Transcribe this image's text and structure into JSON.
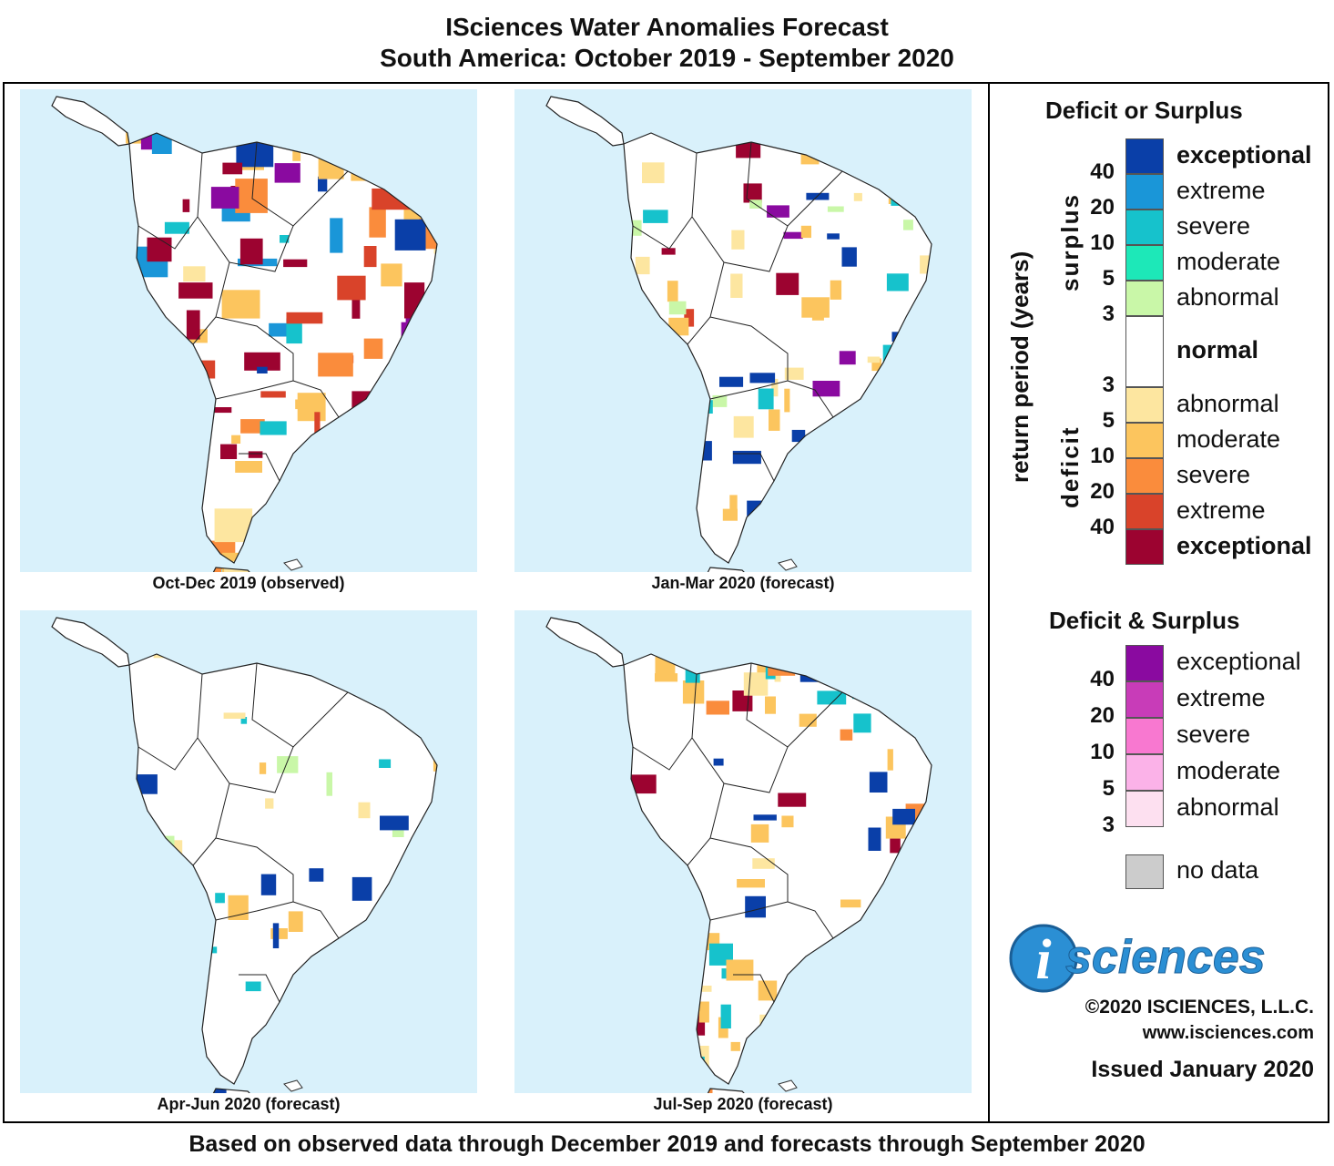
{
  "header": {
    "title": "ISciences Water Anomalies Forecast",
    "subtitle": "South America: October 2019 - September 2020"
  },
  "panels": [
    {
      "caption": "Oct-Dec 2019 (observed)",
      "intensity": "high"
    },
    {
      "caption": "Jan-Mar 2020 (forecast)",
      "intensity": "medium"
    },
    {
      "caption": "Apr-Jun 2020 (forecast)",
      "intensity": "low"
    },
    {
      "caption": "Jul-Sep 2020 (forecast)",
      "intensity": "medium-low"
    }
  ],
  "legend": {
    "ds_title": "Deficit or Surplus",
    "axis_label": "return period (years)",
    "surplus_label": "surplus",
    "deficit_label": "deficit",
    "surplus": [
      {
        "label": "exceptional",
        "color": "#0a3fa8"
      },
      {
        "label": "extreme",
        "color": "#1a96d8"
      },
      {
        "label": "severe",
        "color": "#16c2cc"
      },
      {
        "label": "moderate",
        "color": "#1de8b8"
      },
      {
        "label": "abnormal",
        "color": "#c9f7a8"
      }
    ],
    "normal": {
      "label": "normal",
      "color": "#ffffff"
    },
    "deficit": [
      {
        "label": "abnormal",
        "color": "#fde6a0"
      },
      {
        "label": "moderate",
        "color": "#fcc55e"
      },
      {
        "label": "severe",
        "color": "#fa8c3c"
      },
      {
        "label": "extreme",
        "color": "#d9432a"
      },
      {
        "label": "exceptional",
        "color": "#9c0330"
      }
    ],
    "surplus_nums": [
      "40",
      "20",
      "10",
      "5",
      "3"
    ],
    "deficit_nums": [
      "3",
      "5",
      "10",
      "20",
      "40"
    ],
    "both_title": "Deficit & Surplus",
    "both": [
      {
        "label": "exceptional",
        "color": "#8a0aa0"
      },
      {
        "label": "extreme",
        "color": "#c83cb8"
      },
      {
        "label": "severe",
        "color": "#f878d0"
      },
      {
        "label": "moderate",
        "color": "#fbb2e8"
      },
      {
        "label": "abnormal",
        "color": "#fde0f0"
      }
    ],
    "both_nums": [
      "40",
      "20",
      "10",
      "5",
      "3"
    ],
    "nodata": {
      "label": "no data",
      "color": "#cccccc"
    }
  },
  "brand": {
    "logo_i": "i",
    "logo_text": "sciences",
    "copyright": "©2020 ISCIENCES, L.L.C.",
    "website": "www.isciences.com",
    "issued": "Issued January 2020"
  },
  "footer": "Based on observed data through December 2019 and forecasts through September 2020"
}
